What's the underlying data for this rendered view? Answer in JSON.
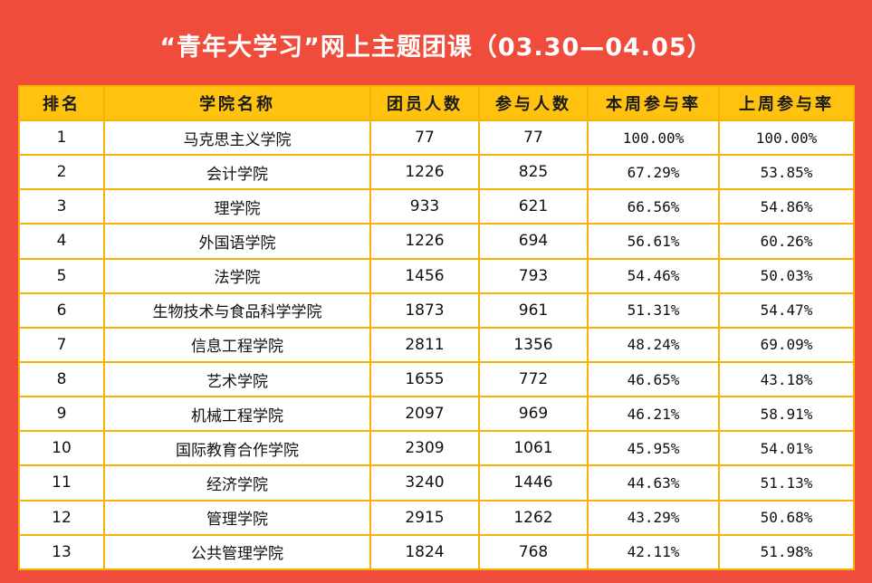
{
  "title": "“青年大学习”网上主题团课（03.30—04.05）",
  "colors": {
    "background": "#ef4c3c",
    "header_fill": "#ffc20e",
    "grid": "#f5b400"
  },
  "table": {
    "headers": [
      "排名",
      "学院名称",
      "团员人数",
      "参与人数",
      "本周参与率",
      "上周参与率"
    ],
    "rows": [
      [
        "1",
        "马克思主义学院",
        "77",
        "77",
        "100.00%",
        "100.00%"
      ],
      [
        "2",
        "会计学院",
        "1226",
        "825",
        "67.29%",
        "53.85%"
      ],
      [
        "3",
        "理学院",
        "933",
        "621",
        "66.56%",
        "54.86%"
      ],
      [
        "4",
        "外国语学院",
        "1226",
        "694",
        "56.61%",
        "60.26%"
      ],
      [
        "5",
        "法学院",
        "1456",
        "793",
        "54.46%",
        "50.03%"
      ],
      [
        "6",
        "生物技术与食品科学学院",
        "1873",
        "961",
        "51.31%",
        "54.47%"
      ],
      [
        "7",
        "信息工程学院",
        "2811",
        "1356",
        "48.24%",
        "69.09%"
      ],
      [
        "8",
        "艺术学院",
        "1655",
        "772",
        "46.65%",
        "43.18%"
      ],
      [
        "9",
        "机械工程学院",
        "2097",
        "969",
        "46.21%",
        "58.91%"
      ],
      [
        "10",
        "国际教育合作学院",
        "2309",
        "1061",
        "45.95%",
        "54.01%"
      ],
      [
        "11",
        "经济学院",
        "3240",
        "1446",
        "44.63%",
        "51.13%"
      ],
      [
        "12",
        "管理学院",
        "2915",
        "1262",
        "43.29%",
        "50.68%"
      ],
      [
        "13",
        "公共管理学院",
        "1824",
        "768",
        "42.11%",
        "51.98%"
      ]
    ]
  }
}
